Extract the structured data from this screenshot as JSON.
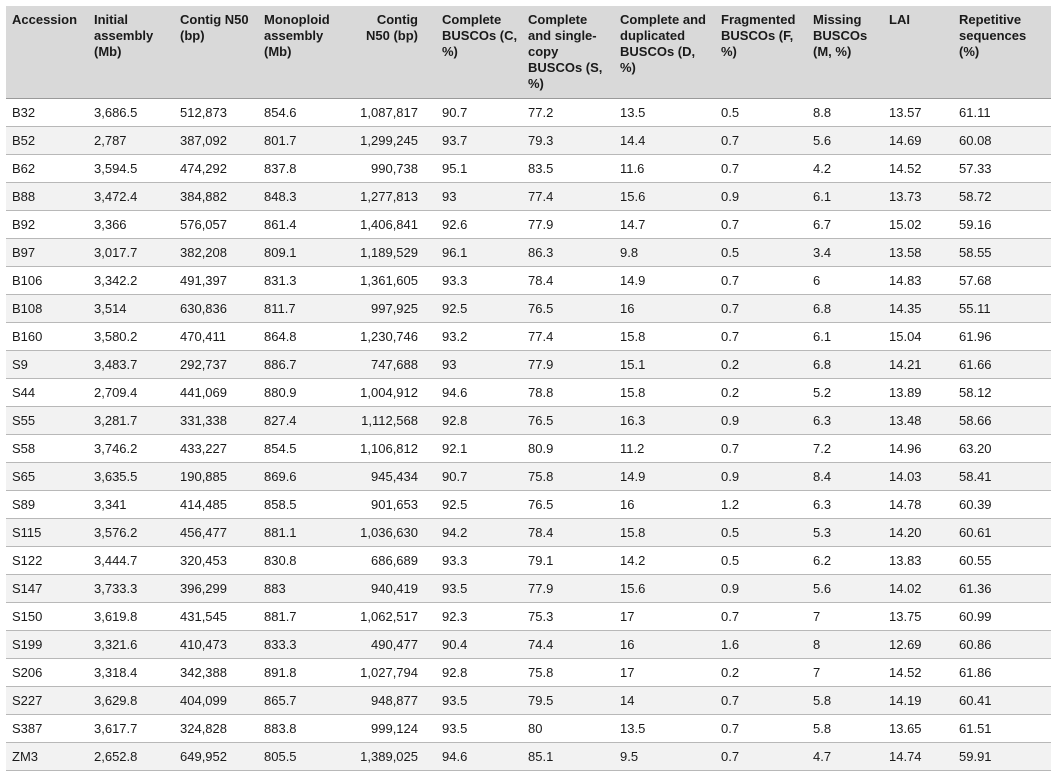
{
  "headers": [
    "Accession",
    "Initial assembly (Mb)",
    "Contig N50 (bp)",
    "Monoploid assembly (Mb)",
    "Contig N50 (bp)",
    "Complete BUSCOs (C, %)",
    "Complete and single-copy BUSCOs (S, %)",
    "Complete and duplicated BUSCOs (D, %)",
    "Fragmented BUSCOs (F, %)",
    "Missing BUSCOs (M, %)",
    "LAI",
    "Repetitive sequences (%)"
  ],
  "rows": [
    [
      "B32",
      "3,686.5",
      "512,873",
      "854.6",
      "1,087,817",
      "90.7",
      "77.2",
      "13.5",
      "0.5",
      "8.8",
      "13.57",
      "61.11"
    ],
    [
      "B52",
      "2,787",
      "387,092",
      "801.7",
      "1,299,245",
      "93.7",
      "79.3",
      "14.4",
      "0.7",
      "5.6",
      "14.69",
      "60.08"
    ],
    [
      "B62",
      "3,594.5",
      "474,292",
      "837.8",
      "990,738",
      "95.1",
      "83.5",
      "11.6",
      "0.7",
      "4.2",
      "14.52",
      "57.33"
    ],
    [
      "B88",
      "3,472.4",
      "384,882",
      "848.3",
      "1,277,813",
      "93",
      "77.4",
      "15.6",
      "0.9",
      "6.1",
      "13.73",
      "58.72"
    ],
    [
      "B92",
      "3,366",
      "576,057",
      "861.4",
      "1,406,841",
      "92.6",
      "77.9",
      "14.7",
      "0.7",
      "6.7",
      "15.02",
      "59.16"
    ],
    [
      "B97",
      "3,017.7",
      "382,208",
      "809.1",
      "1,189,529",
      "96.1",
      "86.3",
      "9.8",
      "0.5",
      "3.4",
      "13.58",
      "58.55"
    ],
    [
      "B106",
      "3,342.2",
      "491,397",
      "831.3",
      "1,361,605",
      "93.3",
      "78.4",
      "14.9",
      "0.7",
      "6",
      "14.83",
      "57.68"
    ],
    [
      "B108",
      "3,514",
      "630,836",
      "811.7",
      "997,925",
      "92.5",
      "76.5",
      "16",
      "0.7",
      "6.8",
      "14.35",
      "55.11"
    ],
    [
      "B160",
      "3,580.2",
      "470,411",
      "864.8",
      "1,230,746",
      "93.2",
      "77.4",
      "15.8",
      "0.7",
      "6.1",
      "15.04",
      "61.96"
    ],
    [
      "S9",
      "3,483.7",
      "292,737",
      "886.7",
      "747,688",
      "93",
      "77.9",
      "15.1",
      "0.2",
      "6.8",
      "14.21",
      "61.66"
    ],
    [
      "S44",
      "2,709.4",
      "441,069",
      "880.9",
      "1,004,912",
      "94.6",
      "78.8",
      "15.8",
      "0.2",
      "5.2",
      "13.89",
      "58.12"
    ],
    [
      "S55",
      "3,281.7",
      "331,338",
      "827.4",
      "1,112,568",
      "92.8",
      "76.5",
      "16.3",
      "0.9",
      "6.3",
      "13.48",
      "58.66"
    ],
    [
      "S58",
      "3,746.2",
      "433,227",
      "854.5",
      "1,106,812",
      "92.1",
      "80.9",
      "11.2",
      "0.7",
      "7.2",
      "14.96",
      "63.20"
    ],
    [
      "S65",
      "3,635.5",
      "190,885",
      "869.6",
      "945,434",
      "90.7",
      "75.8",
      "14.9",
      "0.9",
      "8.4",
      "14.03",
      "58.41"
    ],
    [
      "S89",
      "3,341",
      "414,485",
      "858.5",
      "901,653",
      "92.5",
      "76.5",
      "16",
      "1.2",
      "6.3",
      "14.78",
      "60.39"
    ],
    [
      "S115",
      "3,576.2",
      "456,477",
      "881.1",
      "1,036,630",
      "94.2",
      "78.4",
      "15.8",
      "0.5",
      "5.3",
      "14.20",
      "60.61"
    ],
    [
      "S122",
      "3,444.7",
      "320,453",
      "830.8",
      "686,689",
      "93.3",
      "79.1",
      "14.2",
      "0.5",
      "6.2",
      "13.83",
      "60.55"
    ],
    [
      "S147",
      "3,733.3",
      "396,299",
      "883",
      "940,419",
      "93.5",
      "77.9",
      "15.6",
      "0.9",
      "5.6",
      "14.02",
      "61.36"
    ],
    [
      "S150",
      "3,619.8",
      "431,545",
      "881.7",
      "1,062,517",
      "92.3",
      "75.3",
      "17",
      "0.7",
      "7",
      "13.75",
      "60.99"
    ],
    [
      "S199",
      "3,321.6",
      "410,473",
      "833.3",
      "490,477",
      "90.4",
      "74.4",
      "16",
      "1.6",
      "8",
      "12.69",
      "60.86"
    ],
    [
      "S206",
      "3,318.4",
      "342,388",
      "891.8",
      "1,027,794",
      "92.8",
      "75.8",
      "17",
      "0.2",
      "7",
      "14.52",
      "61.86"
    ],
    [
      "S227",
      "3,629.8",
      "404,099",
      "865.7",
      "948,877",
      "93.5",
      "79.5",
      "14",
      "0.7",
      "5.8",
      "14.19",
      "60.41"
    ],
    [
      "S387",
      "3,617.7",
      "324,828",
      "883.8",
      "999,124",
      "93.5",
      "80",
      "13.5",
      "0.7",
      "5.8",
      "13.65",
      "61.51"
    ],
    [
      "ZM3",
      "2,652.8",
      "649,952",
      "805.5",
      "1,389,025",
      "94.6",
      "85.1",
      "9.5",
      "0.7",
      "4.7",
      "14.74",
      "59.91"
    ]
  ],
  "colors": {
    "header_bg": "#d9d9d9",
    "stripe_bg": "#f2f2f2",
    "rule": "#b8b8b8"
  }
}
